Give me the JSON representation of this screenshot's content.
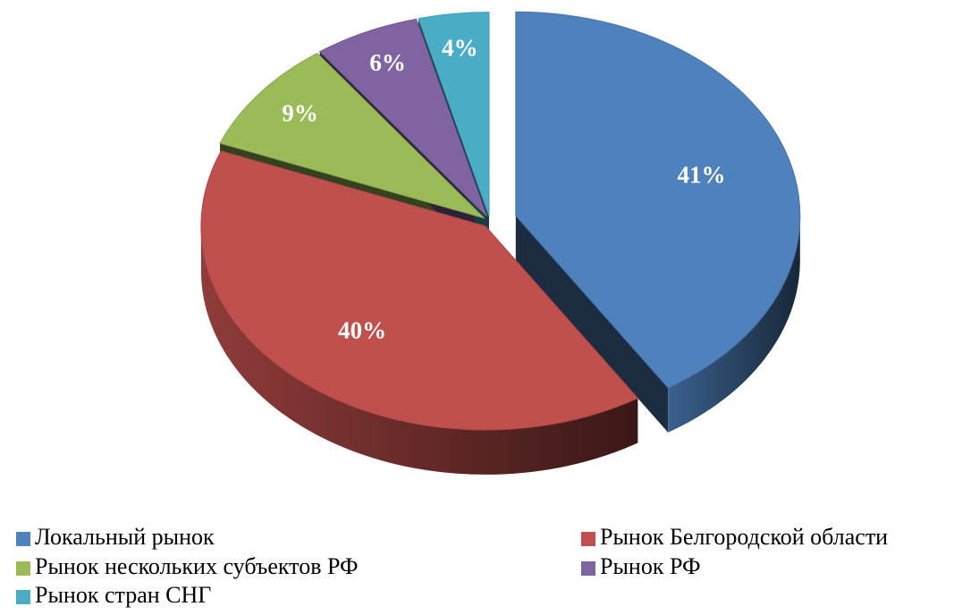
{
  "chart_data": {
    "type": "pie",
    "categories": [
      "Локальный рынок",
      "Рынок Белгородской области",
      "Рынок нескольких субъектов РФ",
      "Рынок РФ",
      "Рынок стран СНГ"
    ],
    "values": [
      41,
      40,
      9,
      6,
      4
    ],
    "value_labels": [
      "41%",
      "40%",
      "9%",
      "6%",
      "4%"
    ],
    "colors": [
      "#4f81bd",
      "#c0504d",
      "#9bbb59",
      "#8064a2",
      "#4bacc6"
    ],
    "legend": "bottom"
  }
}
